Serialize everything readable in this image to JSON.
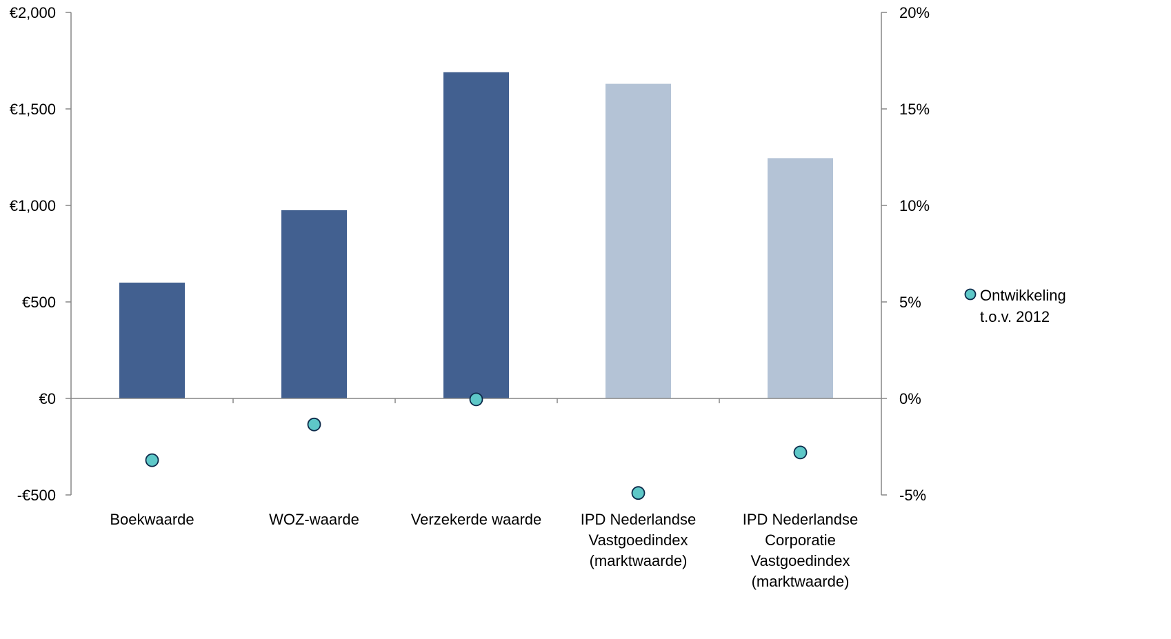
{
  "chart_data": {
    "type": "bar",
    "categories": [
      [
        "Boekwaarde"
      ],
      [
        "WOZ-waarde"
      ],
      [
        "Verzekerde waarde"
      ],
      [
        "IPD Nederlandse",
        "Vastgoedindex",
        "(marktwaarde)"
      ],
      [
        "IPD Nederlandse",
        "Corporatie",
        "Vastgoedindex",
        "(marktwaarde)"
      ]
    ],
    "values": [
      600,
      975,
      1690,
      1630,
      1245
    ],
    "bar_colors": [
      "#426090",
      "#426090",
      "#426090",
      "#b4c3d6",
      "#b4c3d6"
    ],
    "points": {
      "name": "Ontwikkeling t.o.v. 2012",
      "name_lines": [
        "Ontwikkeling",
        "t.o.v. 2012"
      ],
      "values": [
        -3.2,
        -1.35,
        -0.05,
        -4.9,
        -2.8
      ],
      "color": "#5ec8c8",
      "stroke": "#0d2a4a"
    },
    "y_left": {
      "min": -500,
      "max": 2000,
      "ticks": [
        -500,
        0,
        500,
        1000,
        1500,
        2000
      ],
      "tick_labels": [
        "-€500",
        "€0",
        "€500",
        "€1,000",
        "€1,500",
        "€2,000"
      ]
    },
    "y_right": {
      "min": -5,
      "max": 20,
      "tick_labels": [
        "-5%",
        "0%",
        "5%",
        "10%",
        "15%",
        "20%"
      ]
    },
    "legend_position": "right",
    "grid": false
  }
}
